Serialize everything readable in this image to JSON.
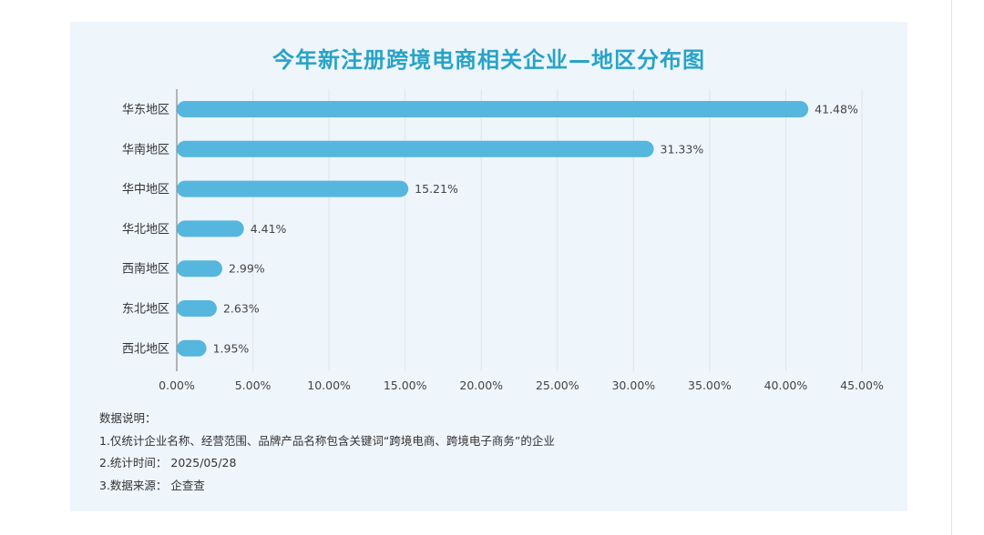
{
  "colors": {
    "bar": "#55b6de",
    "title": "#27a3c7",
    "axis": "#888888",
    "grid": "#dde4ea"
  },
  "chart_data": {
    "type": "bar",
    "orientation": "horizontal",
    "title": "今年新注册跨境电商相关企业—地区分布图",
    "categories": [
      "华东地区",
      "华南地区",
      "华中地区",
      "华北地区",
      "西南地区",
      "东北地区",
      "西北地区"
    ],
    "values": [
      41.48,
      31.33,
      15.21,
      4.41,
      2.99,
      2.63,
      1.95
    ],
    "value_labels": [
      "41.48%",
      "31.33%",
      "15.21%",
      "4.41%",
      "2.99%",
      "2.63%",
      "1.95%"
    ],
    "xlim": [
      0,
      45
    ],
    "xticks": [
      "0.00%",
      "5.00%",
      "10.00%",
      "15.00%",
      "20.00%",
      "25.00%",
      "30.00%",
      "35.00%",
      "40.00%",
      "45.00%"
    ],
    "grid": true,
    "legend": "none"
  },
  "notes": {
    "heading": "数据说明：",
    "line1": "1.仅统计企业名称、经营范围、品牌产品名称包含关键词“跨境电商、跨境电子商务”的企业",
    "line2": "2.统计时间：  2025/05/28",
    "line3": "3.数据来源：  企查查"
  }
}
